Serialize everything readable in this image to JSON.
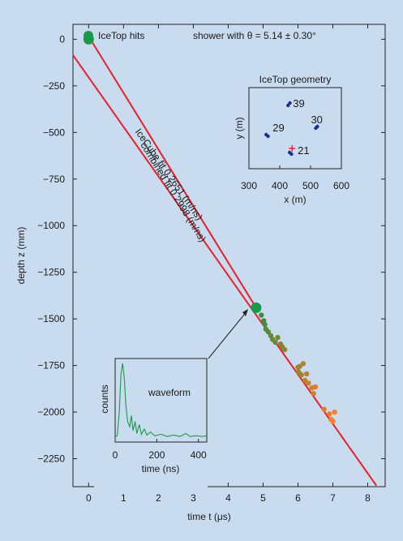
{
  "chart_data": {
    "type": "scatter",
    "xlabel": "time t (μs)",
    "ylabel": "depth z (mm)",
    "xlim": [
      -0.45,
      8.5
    ],
    "ylim": [
      -2400,
      80
    ],
    "xticks": [
      0,
      1,
      2,
      3,
      4,
      5,
      6,
      7,
      8
    ],
    "yticks": [
      0,
      -250,
      -500,
      -750,
      -1000,
      -1250,
      -1500,
      -1750,
      -2000,
      -2250
    ],
    "xtick_labels": [
      "0",
      "1",
      "2",
      "3",
      "4",
      "5",
      "6",
      "7",
      "8"
    ],
    "ytick_labels": [
      "0",
      "−250",
      "−500",
      "−750",
      "−1000",
      "−1250",
      "−1500",
      "−1750",
      "−2000",
      "−2250"
    ],
    "legend": {
      "label": "IceTop hits",
      "color": "#1a9a48"
    },
    "annotation_top": "shower with θ = 5.14 ± 0.30°",
    "fits": [
      {
        "name": "combined fit 0.2998 (m/ns)",
        "points": [
          [
            0.05,
            0
          ],
          [
            4.8,
            -1440
          ]
        ],
        "color": "#e8202a"
      },
      {
        "name": "IceCube fit 0.2651 (m/ns)",
        "points": [
          [
            -0.45,
            -85
          ],
          [
            8.25,
            -2395
          ]
        ],
        "color": "#e8202a"
      }
    ],
    "icetop_hits": [
      [
        0,
        0
      ],
      [
        4.8,
        -1440
      ]
    ],
    "icecube_hits": [
      [
        4.95,
        -1480
      ],
      [
        5.02,
        -1510
      ],
      [
        5.05,
        -1530
      ],
      [
        5.08,
        -1555
      ],
      [
        5.15,
        -1570
      ],
      [
        5.22,
        -1590
      ],
      [
        5.27,
        -1610
      ],
      [
        5.35,
        -1625
      ],
      [
        5.42,
        -1600
      ],
      [
        5.5,
        -1635
      ],
      [
        5.55,
        -1650
      ],
      [
        5.62,
        -1665
      ],
      [
        6.0,
        -1760
      ],
      [
        6.02,
        -1785
      ],
      [
        6.05,
        -1755
      ],
      [
        6.1,
        -1800
      ],
      [
        6.15,
        -1740
      ],
      [
        6.2,
        -1830
      ],
      [
        6.25,
        -1795
      ],
      [
        6.3,
        -1845
      ],
      [
        6.4,
        -1870
      ],
      [
        6.45,
        -1900
      ],
      [
        6.5,
        -1865
      ],
      [
        6.75,
        -1985
      ],
      [
        6.9,
        -2010
      ],
      [
        6.95,
        -2040
      ],
      [
        7.0,
        -2050
      ],
      [
        7.05,
        -2000
      ]
    ],
    "inset_geometry": {
      "title": "IceTop geometry",
      "xlabel": "x (m)",
      "ylabel": "y (m)",
      "xlim": [
        300,
        600
      ],
      "ylim": [
        -50,
        50
      ],
      "xticks": [
        300,
        400,
        500,
        600
      ],
      "xtick_labels": [
        "300",
        "400",
        "500",
        "600"
      ],
      "stations": [
        {
          "label": "39",
          "points": [
            [
              427,
              28
            ],
            [
              433,
              31
            ]
          ]
        },
        {
          "label": "30",
          "points": [
            [
              517,
              0
            ],
            [
              522,
              2
            ]
          ]
        },
        {
          "label": "29",
          "points": [
            [
              356,
              -8
            ],
            [
              362,
              -10
            ]
          ]
        },
        {
          "label": "21",
          "points": [
            [
              432,
              -30
            ],
            [
              438,
              -32
            ]
          ]
        }
      ],
      "core": [
        440,
        -25
      ]
    },
    "inset_waveform": {
      "label": "waveform",
      "xlabel": "time (ns)",
      "ylabel": "counts",
      "xlim": [
        0,
        440
      ],
      "xticks": [
        0,
        200,
        400
      ],
      "xtick_labels": [
        "0",
        "200",
        "400"
      ],
      "trace": [
        [
          0,
          0.02
        ],
        [
          10,
          0.03
        ],
        [
          20,
          0.35
        ],
        [
          28,
          0.85
        ],
        [
          36,
          1.0
        ],
        [
          44,
          0.8
        ],
        [
          52,
          0.42
        ],
        [
          60,
          0.22
        ],
        [
          70,
          0.15
        ],
        [
          78,
          0.3
        ],
        [
          86,
          0.1
        ],
        [
          96,
          0.22
        ],
        [
          104,
          0.06
        ],
        [
          116,
          0.18
        ],
        [
          126,
          0.05
        ],
        [
          140,
          0.12
        ],
        [
          152,
          0.04
        ],
        [
          170,
          0.08
        ],
        [
          190,
          0.03
        ],
        [
          220,
          0.05
        ],
        [
          250,
          0.02
        ],
        [
          280,
          0.04
        ],
        [
          310,
          0.02
        ],
        [
          340,
          0.06
        ],
        [
          360,
          0.02
        ],
        [
          390,
          0.03
        ],
        [
          420,
          0.02
        ],
        [
          440,
          0.03
        ]
      ]
    },
    "colors": {
      "background": "#c9dbef",
      "fit_line": "#e8202a",
      "icetop": "#1a9a48",
      "station": "#1a2f8a",
      "waveform": "#1a9a48"
    }
  }
}
